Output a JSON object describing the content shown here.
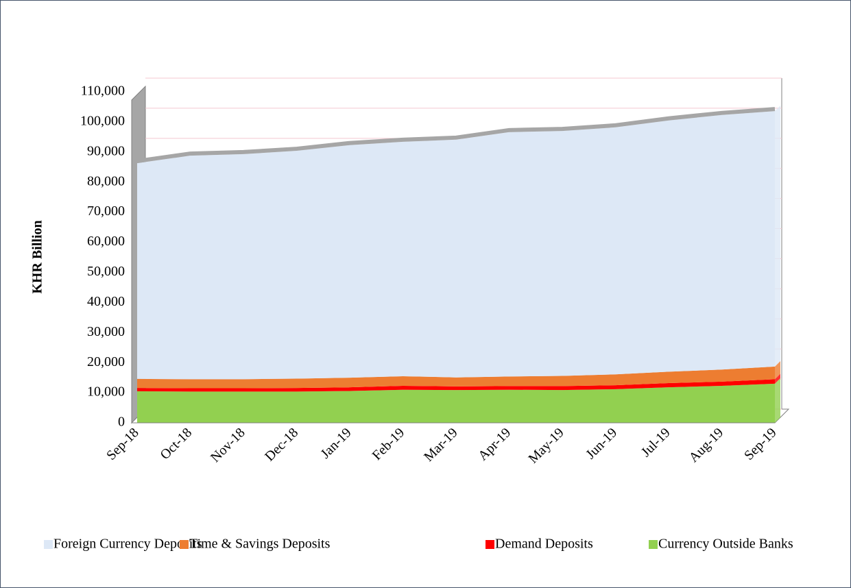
{
  "chart_data": {
    "type": "stacked_area",
    "y_label": "KHR Billion",
    "categories": [
      "Sep-18",
      "Oct-18",
      "Nov-18",
      "Dec-18",
      "Jan-19",
      "Feb-19",
      "Mar-19",
      "Apr-19",
      "May-19",
      "Jun-19",
      "Jul-19",
      "Aug-19",
      "Sep-19"
    ],
    "series": [
      {
        "name": "Foreign Currency Deposits",
        "color": "#dde8f6",
        "values": [
          71700,
          74300,
          74800,
          75700,
          77300,
          77900,
          79000,
          81200,
          81400,
          82100,
          83500,
          84600,
          84900
        ]
      },
      {
        "name": "Time & Savings Deposits",
        "color": "#ed7d31",
        "values": [
          3000,
          3000,
          3000,
          3100,
          3200,
          3200,
          3000,
          3200,
          3400,
          3600,
          3800,
          4000,
          4200
        ]
      },
      {
        "name": "Demand Deposits",
        "color": "#ff0000",
        "values": [
          1100,
          1100,
          1100,
          1200,
          1200,
          1300,
          1200,
          1200,
          1300,
          1300,
          1400,
          1400,
          1500
        ]
      },
      {
        "name": "Currency Outside Banks",
        "color": "#92d050",
        "values": [
          10500,
          10400,
          10400,
          10400,
          10600,
          11000,
          10900,
          11000,
          10900,
          11200,
          11800,
          12300,
          13000
        ]
      }
    ],
    "ylim": [
      0,
      110000
    ],
    "yticks": [
      0,
      {
        "value": 10000,
        "label": "10,000"
      },
      {
        "value": 20000,
        "label": "20,000"
      },
      {
        "value": 30000,
        "label": "30,000"
      },
      {
        "value": 40000,
        "label": "40,000"
      },
      {
        "value": 50000,
        "label": "50,000"
      },
      {
        "value": 60000,
        "label": "60,000"
      },
      {
        "value": 70000,
        "label": "70,000"
      },
      {
        "value": 80000,
        "label": "80,000"
      },
      {
        "value": 90000,
        "label": "90,000"
      },
      {
        "value": 100000,
        "label": "100,000"
      },
      {
        "value": 110000,
        "label": "110,000"
      }
    ],
    "grid": true
  }
}
